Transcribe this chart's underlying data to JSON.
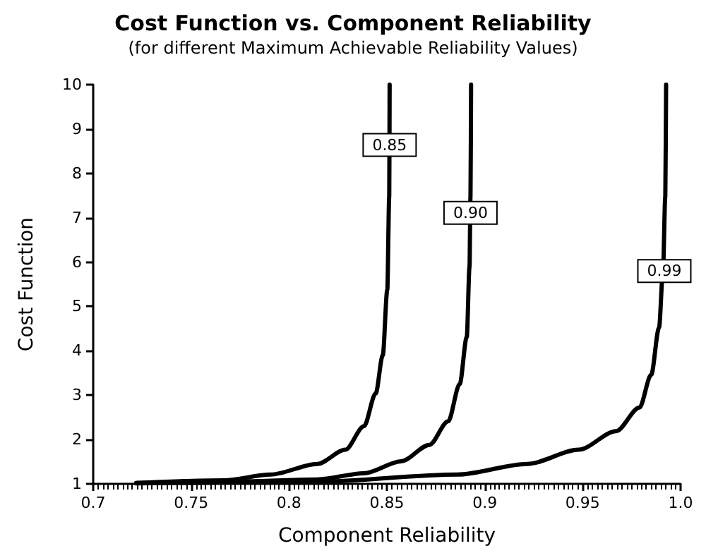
{
  "chart_data": {
    "type": "line",
    "title": "Cost Function vs. Component Reliability",
    "subtitle": "(for different Maximum Achievable Reliability Values)",
    "xlabel": "Component Reliability",
    "ylabel": "Cost Function",
    "xlim": [
      0.7,
      1.0
    ],
    "xticks": [
      0.7,
      0.75,
      {
        "value": 0.8,
        "label": "0.8"
      },
      0.85,
      {
        "value": 0.9,
        "label": "0.9"
      },
      0.95,
      {
        "value": 1.0,
        "label": "1.0"
      }
    ],
    "ylim": [
      1,
      10
    ],
    "yticks": [
      1,
      2,
      3,
      4,
      5,
      6,
      7,
      8,
      9,
      10
    ],
    "grid": false,
    "marker": "none",
    "line_style": "solid",
    "series": [
      {
        "color": "#000000",
        "x": [
          0.722,
          0.7668,
          0.7906,
          0.8145,
          0.8288,
          0.8383,
          0.8443,
          0.8479,
          0.8502,
          0.8512,
          0.8514
        ],
        "values": [
          1.02,
          1.08,
          1.21,
          1.45,
          1.77,
          2.3,
          3.04,
          3.9,
          5.37,
          7.48,
          10
        ]
      },
      {
        "color": "#000000",
        "x": [
          0.722,
          0.7787,
          0.8145,
          0.8383,
          0.8574,
          0.8717,
          0.8813,
          0.8872,
          0.8908,
          0.8922,
          0.8927,
          0.893
        ],
        "values": [
          1.02,
          1.06,
          1.1,
          1.24,
          1.51,
          1.88,
          2.41,
          3.25,
          4.31,
          5.89,
          7.48,
          10
        ]
      },
      {
        "color": "#000000",
        "x": [
          0.722,
          0.8145,
          0.886,
          0.9218,
          0.948,
          0.9671,
          0.979,
          0.985,
          0.989,
          0.991,
          0.9922,
          0.9926
        ],
        "values": [
          1.01,
          1.05,
          1.21,
          1.45,
          1.77,
          2.19,
          2.72,
          3.46,
          4.52,
          5.79,
          7.48,
          10
        ]
      }
    ],
    "annotations": [
      {
        "text": "0.85",
        "x": 0.8514,
        "y": 8.64
      },
      {
        "text": "0.90",
        "x": 0.8927,
        "y": 7.11
      },
      {
        "text": "0.99",
        "x": 0.9917,
        "y": 5.8
      }
    ]
  }
}
